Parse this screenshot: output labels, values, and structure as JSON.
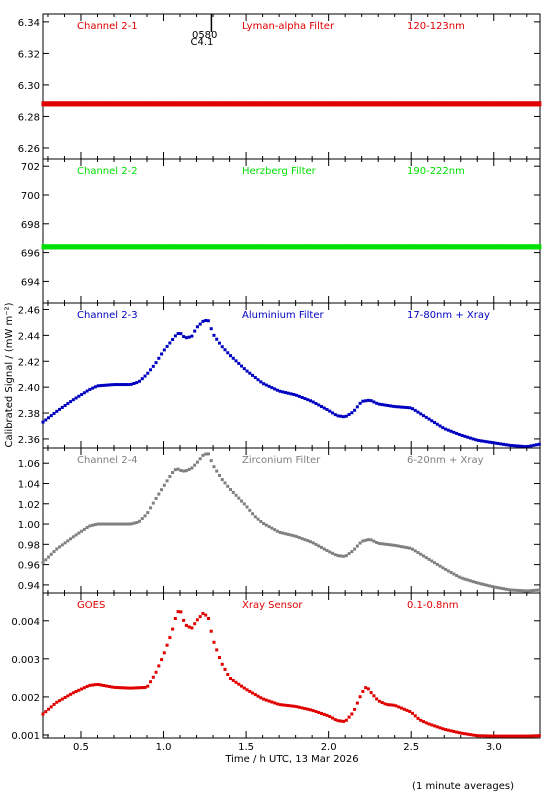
{
  "chart_data": {
    "type": "scatter",
    "x_axis": {
      "label": "Time / h UTC, 13 Mar 2026",
      "range": [
        0.27,
        3.28
      ],
      "ticks": [
        0.5,
        1.0,
        1.5,
        2.0,
        2.5,
        3.0
      ],
      "tick_labels": [
        "0.5",
        "1.0",
        "1.5",
        "2.0",
        "2.5",
        "3.0"
      ]
    },
    "y_label": "Calibrated Signal / (mW m⁻²)",
    "footnote": "(1 minute averages)",
    "panels": [
      {
        "channel": "Channel 2-1",
        "filter": "Lyman-alpha Filter",
        "band": "120-123nm",
        "color": "#e00000",
        "ylim": [
          6.253,
          6.345
        ],
        "yticks": [
          6.26,
          6.28,
          6.3,
          6.32,
          6.34
        ],
        "ytick_labels": [
          "6.26",
          "6.28",
          "6.30",
          "6.32",
          "6.34"
        ],
        "annotation": {
          "x": 1.29,
          "line1": "0580",
          "line2": "C4.1"
        },
        "series": {
          "x": [
            0.27,
            3.28
          ],
          "y": [
            6.288,
            6.288
          ]
        }
      },
      {
        "channel": "Channel 2-2",
        "filter": "Herzberg Filter",
        "band": "190-222nm",
        "color": "#00e000",
        "ylim": [
          692.5,
          702.5
        ],
        "yticks": [
          694,
          696,
          698,
          700,
          702
        ],
        "ytick_labels": [
          "694",
          "696",
          "698",
          "700",
          "702"
        ],
        "series": {
          "x": [
            0.27,
            3.28
          ],
          "y": [
            696.4,
            696.4
          ]
        }
      },
      {
        "channel": "Channel 2-3",
        "filter": "Aluminium Filter",
        "band": "17-80nm + Xray",
        "color": "#0000c0",
        "ylim": [
          2.353,
          2.465
        ],
        "yticks": [
          2.36,
          2.38,
          2.4,
          2.42,
          2.44,
          2.46
        ],
        "ytick_labels": [
          "2.36",
          "2.38",
          "2.40",
          "2.42",
          "2.44",
          "2.46"
        ],
        "series": {
          "x": [
            0.27,
            0.35,
            0.45,
            0.55,
            0.6,
            0.7,
            0.8,
            0.85,
            0.9,
            0.95,
            1.0,
            1.05,
            1.08,
            1.1,
            1.13,
            1.17,
            1.2,
            1.24,
            1.27,
            1.3,
            1.35,
            1.4,
            1.5,
            1.55,
            1.6,
            1.7,
            1.8,
            1.9,
            2.0,
            2.05,
            2.1,
            2.15,
            2.2,
            2.25,
            2.3,
            2.4,
            2.5,
            2.6,
            2.7,
            2.8,
            2.9,
            3.0,
            3.1,
            3.2,
            3.28
          ],
          "y": [
            2.373,
            2.381,
            2.39,
            2.398,
            2.401,
            2.402,
            2.402,
            2.404,
            2.41,
            2.418,
            2.428,
            2.436,
            2.441,
            2.442,
            2.438,
            2.439,
            2.446,
            2.451,
            2.452,
            2.441,
            2.432,
            2.425,
            2.413,
            2.408,
            2.403,
            2.397,
            2.394,
            2.389,
            2.382,
            2.378,
            2.377,
            2.381,
            2.389,
            2.39,
            2.387,
            2.385,
            2.384,
            2.376,
            2.368,
            2.363,
            2.359,
            2.357,
            2.355,
            2.354,
            2.356
          ]
        }
      },
      {
        "channel": "Channel 2-4",
        "filter": "Zirconium Filter",
        "band": "6-20nm + Xray",
        "color": "#808080",
        "ylim": [
          0.932,
          1.075
        ],
        "yticks": [
          0.94,
          0.96,
          0.98,
          1.0,
          1.02,
          1.04,
          1.06
        ],
        "ytick_labels": [
          "0.94",
          "0.96",
          "0.98",
          "1.00",
          "1.02",
          "1.04",
          "1.06"
        ],
        "series": {
          "x": [
            0.27,
            0.35,
            0.45,
            0.55,
            0.6,
            0.7,
            0.8,
            0.85,
            0.9,
            0.95,
            1.0,
            1.05,
            1.08,
            1.1,
            1.13,
            1.17,
            1.2,
            1.24,
            1.27,
            1.3,
            1.35,
            1.4,
            1.5,
            1.55,
            1.6,
            1.7,
            1.8,
            1.9,
            2.0,
            2.05,
            2.1,
            2.15,
            2.2,
            2.25,
            2.3,
            2.4,
            2.5,
            2.6,
            2.7,
            2.8,
            2.9,
            3.0,
            3.1,
            3.2,
            3.28
          ],
          "y": [
            0.962,
            0.975,
            0.987,
            0.998,
            1.0,
            1.0,
            1.0,
            1.002,
            1.01,
            1.024,
            1.037,
            1.05,
            1.055,
            1.053,
            1.052,
            1.055,
            1.06,
            1.068,
            1.07,
            1.058,
            1.045,
            1.035,
            1.018,
            1.008,
            1.001,
            0.992,
            0.988,
            0.982,
            0.973,
            0.969,
            0.968,
            0.974,
            0.983,
            0.985,
            0.981,
            0.979,
            0.976,
            0.966,
            0.956,
            0.947,
            0.942,
            0.938,
            0.935,
            0.934,
            0.935
          ]
        }
      },
      {
        "channel": "GOES",
        "filter": "Xray Sensor",
        "band": "0.1-0.8nm",
        "color": "#e00000",
        "ylim": [
          0.00092,
          0.00473
        ],
        "yticks": [
          0.001,
          0.002,
          0.003,
          0.004
        ],
        "ytick_labels": [
          "0.001",
          "0.002",
          "0.003",
          "0.004"
        ],
        "series": {
          "x": [
            0.27,
            0.35,
            0.45,
            0.55,
            0.6,
            0.7,
            0.8,
            0.9,
            0.95,
            1.0,
            1.05,
            1.08,
            1.1,
            1.13,
            1.17,
            1.2,
            1.24,
            1.27,
            1.3,
            1.35,
            1.4,
            1.5,
            1.6,
            1.7,
            1.8,
            1.9,
            2.0,
            2.05,
            2.1,
            2.15,
            2.2,
            2.23,
            2.25,
            2.3,
            2.35,
            2.4,
            2.5,
            2.55,
            2.6,
            2.7,
            2.8,
            2.9,
            3.0,
            3.1,
            3.2,
            3.28
          ],
          "y": [
            0.00155,
            0.00185,
            0.0021,
            0.0023,
            0.00233,
            0.00225,
            0.00223,
            0.00225,
            0.0026,
            0.0031,
            0.0037,
            0.0042,
            0.0043,
            0.0039,
            0.0038,
            0.004,
            0.0042,
            0.0041,
            0.0035,
            0.0029,
            0.0025,
            0.0022,
            0.00195,
            0.0018,
            0.00175,
            0.00165,
            0.0015,
            0.00138,
            0.00135,
            0.0016,
            0.0021,
            0.00228,
            0.00215,
            0.0019,
            0.0018,
            0.00178,
            0.0016,
            0.0014,
            0.0013,
            0.00115,
            0.00105,
            0.00098,
            0.00097,
            0.00097,
            0.00097,
            0.00098
          ]
        }
      }
    ]
  }
}
